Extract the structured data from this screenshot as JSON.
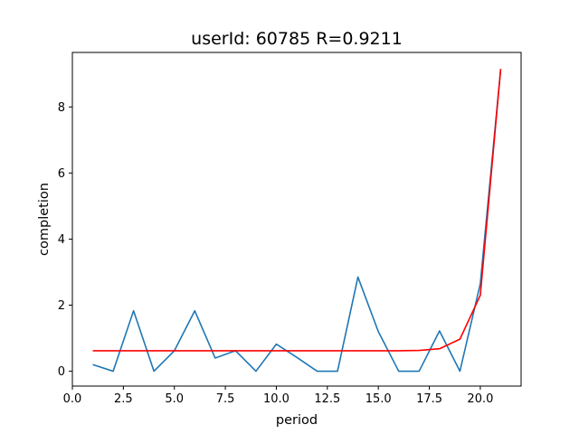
{
  "chart_data": {
    "type": "line",
    "title": "userId: 60785  R=0.9211",
    "xlabel": "period",
    "ylabel": "completion",
    "xlim": [
      0.0,
      22.0
    ],
    "ylim": [
      -0.45,
      9.65
    ],
    "xticks": [
      0.0,
      2.5,
      5.0,
      7.5,
      10.0,
      12.5,
      15.0,
      17.5,
      20.0
    ],
    "xtick_labels": [
      "0.0",
      "2.5",
      "5.0",
      "7.5",
      "10.0",
      "12.5",
      "15.0",
      "17.5",
      "20.0"
    ],
    "yticks": [
      0,
      2,
      4,
      6,
      8
    ],
    "ytick_labels": [
      "0",
      "2",
      "4",
      "6",
      "8"
    ],
    "grid": false,
    "series": [
      {
        "color": "#1f77b4",
        "x": [
          1,
          2,
          3,
          4,
          5,
          6,
          7,
          8,
          9,
          10,
          11,
          12,
          13,
          14,
          15,
          16,
          17,
          18,
          19,
          20,
          21
        ],
        "y": [
          0.2,
          0.0,
          1.83,
          0.0,
          0.62,
          1.83,
          0.4,
          0.62,
          0.0,
          0.82,
          0.42,
          0.0,
          0.0,
          2.85,
          1.2,
          0.0,
          0.0,
          1.22,
          0.0,
          2.65,
          9.15
        ]
      },
      {
        "color": "#ff0000",
        "x": [
          1,
          2,
          3,
          4,
          5,
          6,
          7,
          8,
          9,
          10,
          11,
          12,
          13,
          14,
          15,
          16,
          17,
          18,
          19,
          20,
          21
        ],
        "y": [
          0.62,
          0.62,
          0.62,
          0.62,
          0.62,
          0.62,
          0.62,
          0.62,
          0.62,
          0.62,
          0.62,
          0.62,
          0.62,
          0.62,
          0.62,
          0.62,
          0.63,
          0.68,
          0.97,
          2.3,
          9.15
        ]
      }
    ]
  }
}
